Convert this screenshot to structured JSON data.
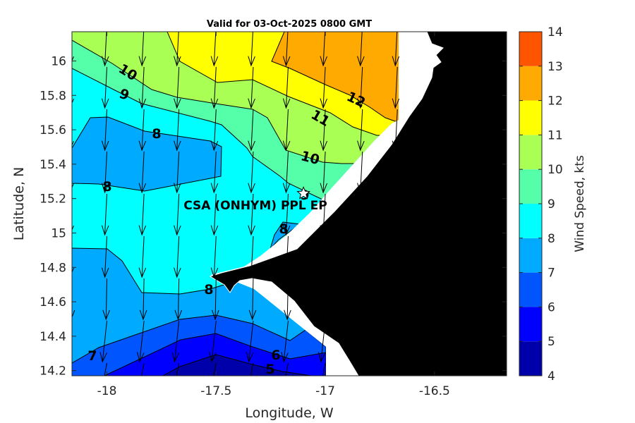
{
  "chart_data": {
    "type": "contour-map",
    "title": "Valid for 03-Oct-2025 0800 GMT",
    "xlabel": "Longitude, W",
    "ylabel": "Latitude, N",
    "xlim": [
      -18.16,
      -16.17
    ],
    "ylim": [
      14.17,
      16.17
    ],
    "xticks": [
      -18,
      -17.5,
      -17,
      -16.5
    ],
    "xtick_labels": [
      "-18",
      "-17.5",
      "-17",
      "-16.5"
    ],
    "yticks": [
      14.2,
      14.4,
      14.6,
      14.8,
      15,
      15.2,
      15.4,
      15.6,
      15.8,
      16
    ],
    "ytick_labels": [
      "14.2",
      "14.4",
      "14.6",
      "14.8",
      "15",
      "15.2",
      "15.4",
      "15.6",
      "15.8",
      "16"
    ],
    "colorbar": {
      "label": "Wind Speed, kts",
      "range": [
        4,
        14
      ],
      "ticks": [
        "4",
        "5",
        "6",
        "7",
        "8",
        "9",
        "10",
        "11",
        "12",
        "13",
        "14"
      ],
      "levels": [
        4,
        5,
        6,
        7,
        8,
        9,
        10,
        11,
        12,
        13,
        14
      ],
      "colors": [
        "#0000aa",
        "#0000ff",
        "#0055ff",
        "#00aaff",
        "#00ffff",
        "#55ffaa",
        "#aaff55",
        "#ffff00",
        "#ffaa00",
        "#ff5500"
      ]
    },
    "contour_labels": [
      "10",
      "9",
      "8",
      "8",
      "11",
      "12",
      "10",
      "9",
      "8",
      "8",
      "7",
      "6",
      "5"
    ],
    "station": {
      "label": "CSA (ONHYM) PPL EP",
      "lon": -17.1,
      "lat": 15.23
    },
    "wind": {
      "units": "kts",
      "direction_from_deg": 5,
      "speed_range": [
        4,
        13
      ]
    },
    "land_color": "#000000",
    "nodata_color": "#ffffff"
  }
}
